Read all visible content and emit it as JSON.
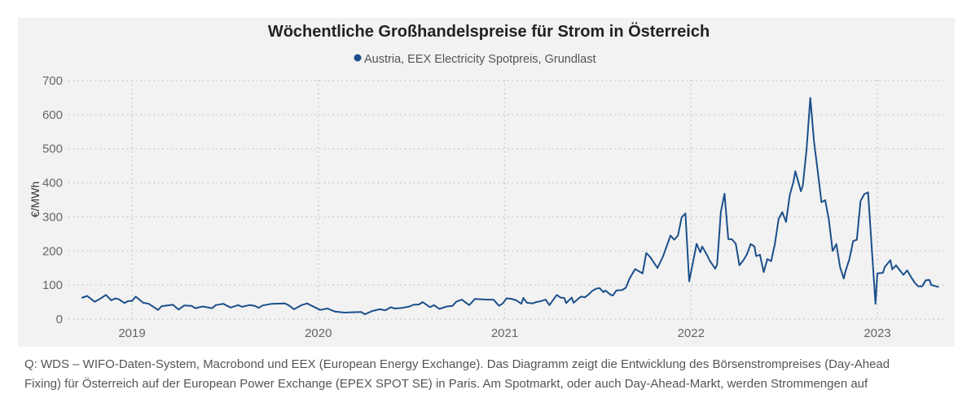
{
  "chart_data": {
    "type": "line",
    "title": "Wöchentliche Großhandelspreise für Strom in Österreich",
    "ylabel": "€/MWh",
    "xlabel": "",
    "ylim": [
      0,
      700
    ],
    "yticks": [
      "0",
      "100",
      "200",
      "300",
      "400",
      "500",
      "600",
      "700"
    ],
    "xlim": [
      2018.62,
      2023.36
    ],
    "xticks": [
      "2019",
      "2020",
      "2021",
      "2022",
      "2023"
    ],
    "grid": true,
    "legend_position": "top",
    "series": [
      {
        "name": "Austria, EEX Electricity Spotpreis, Grundlast",
        "color": "#1b4f8a",
        "x": [
          2018.73,
          2018.76,
          2018.8,
          2018.83,
          2018.86,
          2018.89,
          2018.91,
          2018.93,
          2018.96,
          2018.98,
          2019.0,
          2019.02,
          2019.06,
          2019.09,
          2019.14,
          2019.16,
          2019.22,
          2019.25,
          2019.28,
          2019.32,
          2019.34,
          2019.38,
          2019.43,
          2019.45,
          2019.49,
          2019.53,
          2019.57,
          2019.59,
          2019.63,
          2019.66,
          2019.68,
          2019.7,
          2019.75,
          2019.82,
          2019.84,
          2019.87,
          2019.91,
          2019.94,
          2020.01,
          2020.05,
          2020.09,
          2020.14,
          2020.18,
          2020.23,
          2020.25,
          2020.29,
          2020.33,
          2020.36,
          2020.39,
          2020.41,
          2020.45,
          2020.49,
          2020.51,
          2020.54,
          2020.56,
          2020.6,
          2020.62,
          2020.65,
          2020.69,
          2020.72,
          2020.74,
          2020.77,
          2020.81,
          2020.84,
          2020.91,
          2020.94,
          2020.97,
          2020.99,
          2021.01,
          2021.03,
          2021.06,
          2021.09,
          2021.1,
          2021.12,
          2021.15,
          2021.17,
          2021.19,
          2021.22,
          2021.24,
          2021.28,
          2021.3,
          2021.32,
          2021.33,
          2021.36,
          2021.37,
          2021.4,
          2021.41,
          2021.43,
          2021.45,
          2021.47,
          2021.49,
          2021.51,
          2021.53,
          2021.54,
          2021.57,
          2021.58,
          2021.6,
          2021.63,
          2021.65,
          2021.67,
          2021.7,
          2021.74,
          2021.76,
          2021.78,
          2021.82,
          2021.85,
          2021.89,
          2021.91,
          2021.93,
          2021.95,
          2021.97,
          2021.99,
          2022.01,
          2022.03,
          2022.05,
          2022.06,
          2022.09,
          2022.1,
          2022.13,
          2022.14,
          2022.16,
          2022.18,
          2022.2,
          2022.22,
          2022.24,
          2022.26,
          2022.28,
          2022.3,
          2022.32,
          2022.34,
          2022.35,
          2022.37,
          2022.39,
          2022.41,
          2022.43,
          2022.45,
          2022.47,
          2022.49,
          2022.51,
          2022.53,
          2022.55,
          2022.56,
          2022.59,
          2022.6,
          2022.62,
          2022.64,
          2022.66,
          2022.68,
          2022.7,
          2022.72,
          2022.74,
          2022.76,
          2022.78,
          2022.8,
          2022.82,
          2022.83,
          2022.85,
          2022.87,
          2022.89,
          2022.91,
          2022.93,
          2022.95,
          2022.99,
          2023.0,
          2023.03,
          2023.04,
          2023.07,
          2023.08,
          2023.1,
          2023.12,
          2023.14,
          2023.16,
          2023.18,
          2023.2,
          2023.22,
          2023.24,
          2023.26,
          2023.28,
          2023.29,
          2023.33
        ],
        "values": [
          62,
          68,
          51,
          60,
          71,
          55,
          61,
          58,
          47,
          53,
          53,
          66,
          48,
          45,
          27,
          38,
          42,
          28,
          40,
          39,
          32,
          37,
          32,
          41,
          45,
          34,
          41,
          36,
          41,
          39,
          33,
          40,
          45,
          46,
          41,
          29,
          41,
          46,
          27,
          31,
          22,
          19,
          20,
          21,
          14,
          24,
          29,
          26,
          35,
          31,
          33,
          37,
          42,
          43,
          50,
          35,
          41,
          30,
          37,
          39,
          51,
          57,
          41,
          59,
          57,
          57,
          39,
          46,
          61,
          60,
          56,
          45,
          62,
          48,
          46,
          50,
          52,
          57,
          41,
          71,
          63,
          62,
          47,
          63,
          48,
          62,
          66,
          64,
          72,
          83,
          89,
          91,
          79,
          84,
          71,
          69,
          84,
          85,
          92,
          119,
          147,
          134,
          194,
          183,
          150,
          184,
          245,
          233,
          245,
          299,
          310,
          111,
          165,
          221,
          196,
          213,
          184,
          172,
          148,
          160,
          315,
          368,
          235,
          234,
          221,
          158,
          172,
          190,
          220,
          214,
          185,
          189,
          138,
          176,
          170,
          220,
          294,
          314,
          285,
          364,
          404,
          434,
          375,
          392,
          498,
          649,
          522,
          434,
          343,
          349,
          291,
          200,
          220,
          153,
          119,
          142,
          176,
          229,
          233,
          347,
          367,
          372,
          45,
          134,
          136,
          153,
          173,
          146,
          158,
          144,
          130,
          143,
          124,
          107,
          96,
          96,
          114,
          115,
          100,
          94
        ]
      }
    ]
  },
  "footer": {
    "line1": "Q: WDS – WIFO-Daten-System, Macrobond und EEX (European Energy Exchange). Das Diagramm zeigt die Entwicklung des Börsenstrompreises (Day-Ahead",
    "line2": "Fixing) für Österreich auf der European Power Exchange (EPEX SPOT SE) in Paris. Am Spotmarkt, oder auch Day-Ahead-Markt, werden Strommengen auf"
  }
}
